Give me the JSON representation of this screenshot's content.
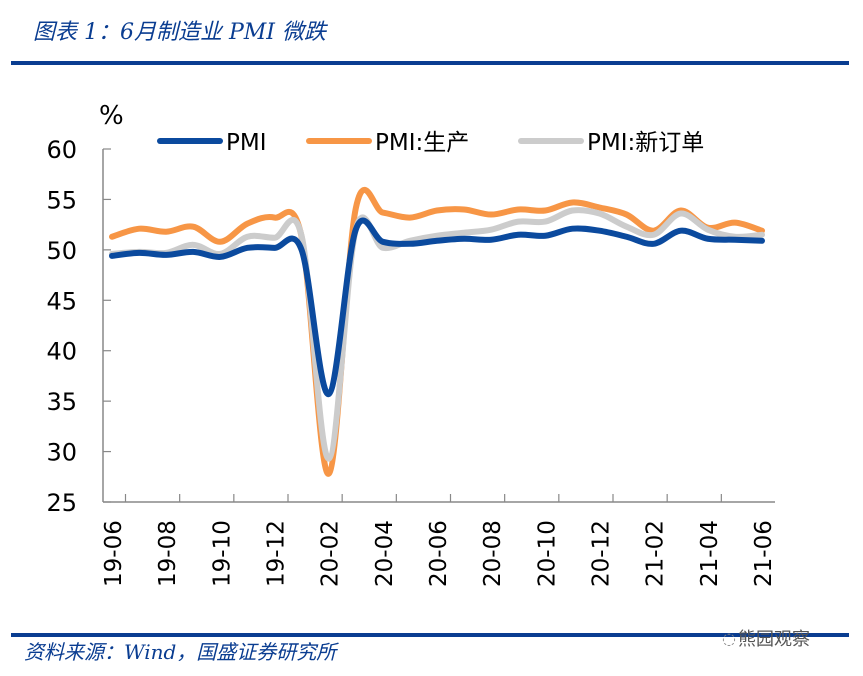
{
  "title": "图表 1：6月制造业 PMI 微跌",
  "source": "资料来源：Wind，国盛证券研究所",
  "watermark": "熊园观察",
  "colors": {
    "accent": "#0a3d91",
    "pmi": "#0b4a9e",
    "production": "#f79646",
    "new_orders": "#cccccc"
  },
  "chart_data": {
    "type": "line",
    "title": "图表 1：6月制造业 PMI 微跌",
    "ylabel": "%",
    "xlabel": "",
    "ylim": [
      25,
      60
    ],
    "yticks": [
      "60",
      "55",
      "50",
      "45",
      "40",
      "35",
      "30",
      "25"
    ],
    "ytick_values": [
      60,
      55,
      50,
      45,
      40,
      35,
      30,
      25
    ],
    "xtick_labels": [
      "19-06",
      "19-08",
      "19-10",
      "19-12",
      "20-02",
      "20-04",
      "20-06",
      "20-08",
      "20-10",
      "20-12",
      "21-02",
      "21-04",
      "21-06"
    ],
    "x": [
      "19-06",
      "19-07",
      "19-08",
      "19-09",
      "19-10",
      "19-11",
      "19-12",
      "20-01",
      "20-02",
      "20-03",
      "20-04",
      "20-05",
      "20-06",
      "20-07",
      "20-08",
      "20-09",
      "20-10",
      "20-11",
      "20-12",
      "21-01",
      "21-02",
      "21-03",
      "21-04",
      "21-05",
      "21-06"
    ],
    "legend_position": "top",
    "grid": false,
    "series": [
      {
        "name": "PMI",
        "key": "pmi",
        "values": [
          49.4,
          49.7,
          49.5,
          49.8,
          49.3,
          50.2,
          50.2,
          50.0,
          35.7,
          52.0,
          50.8,
          50.6,
          50.9,
          51.1,
          51.0,
          51.5,
          51.4,
          52.1,
          51.9,
          51.3,
          50.6,
          51.9,
          51.1,
          51.0,
          50.9
        ]
      },
      {
        "name": "PMI:生产",
        "key": "production",
        "values": [
          51.3,
          52.1,
          51.8,
          52.3,
          50.8,
          52.6,
          53.2,
          51.3,
          27.8,
          54.1,
          53.7,
          53.2,
          53.9,
          54.0,
          53.5,
          54.0,
          53.9,
          54.7,
          54.2,
          53.5,
          51.9,
          53.9,
          52.2,
          52.7,
          51.9
        ]
      },
      {
        "name": "PMI:新订单",
        "key": "new_orders",
        "values": [
          49.6,
          49.8,
          49.7,
          50.5,
          49.6,
          51.3,
          51.2,
          51.4,
          29.3,
          52.0,
          50.2,
          50.9,
          51.4,
          51.7,
          52.0,
          52.8,
          52.8,
          53.9,
          53.6,
          52.3,
          51.5,
          53.6,
          52.0,
          51.3,
          51.5
        ]
      }
    ]
  }
}
